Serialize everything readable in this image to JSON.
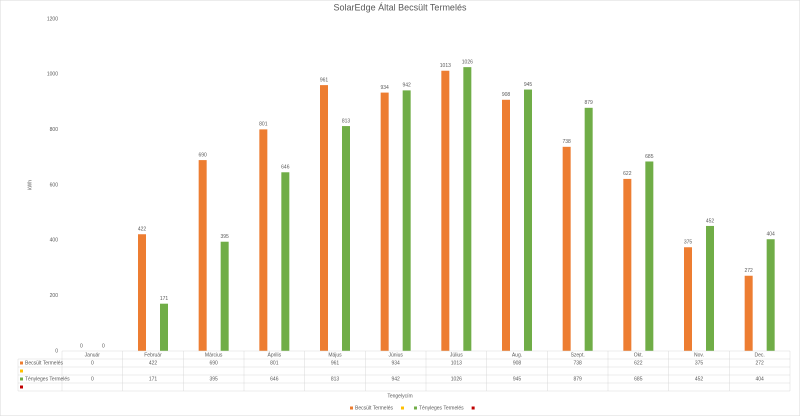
{
  "chart_data": {
    "type": "bar",
    "title": "SolarEdge Által Becsült Termelés",
    "y_label": "kWh",
    "x_label": "Tengelycím",
    "categories": [
      "Január",
      "Február",
      "Március",
      "Április",
      "Május",
      "Június",
      "Július",
      "Aug.",
      "Szept.",
      "Okt.",
      "Nov.",
      "Dec."
    ],
    "series": [
      {
        "name": "Becsült Termelés",
        "color": "#ed7d31",
        "values": [
          0,
          422,
          690,
          801,
          961,
          934,
          1013,
          908,
          738,
          622,
          375,
          272
        ]
      },
      {
        "color": "#ffc000",
        "values": [
          null,
          null,
          null,
          null,
          null,
          null,
          null,
          null,
          null,
          null,
          null,
          null
        ]
      },
      {
        "name": "Tényleges Termelés",
        "color": "#70ad47",
        "values": [
          0,
          171,
          395,
          646,
          813,
          942,
          1026,
          945,
          879,
          685,
          452,
          404
        ]
      },
      {
        "color": "#c00000",
        "values": [
          null,
          null,
          null,
          null,
          null,
          null,
          null,
          null,
          null,
          null,
          null,
          null
        ]
      }
    ],
    "ylim": [
      0,
      1200
    ],
    "yticks": [
      0,
      200,
      400,
      600,
      800,
      1000,
      1200
    ],
    "grid": false,
    "legend": "bottom",
    "data_labels": true,
    "data_table": true
  }
}
